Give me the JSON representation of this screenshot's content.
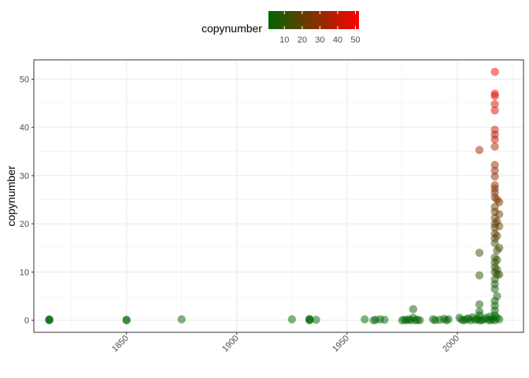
{
  "chart_data": {
    "type": "scatter",
    "title": "",
    "xlabel": "",
    "ylabel": "copynumber",
    "xlim": [
      1808,
      2030
    ],
    "ylim": [
      -2.5,
      54
    ],
    "x_ticks": [
      1850,
      1900,
      1950,
      2000
    ],
    "y_ticks": [
      0,
      10,
      20,
      30,
      40,
      50
    ],
    "x_tick_labels": [
      "1850",
      "1900",
      "1950",
      "2000"
    ],
    "y_tick_labels": [
      "0",
      "10",
      "20",
      "30",
      "40",
      "50"
    ],
    "grid": true,
    "legend": {
      "title": "copynumber",
      "position": "top",
      "type": "colorbar",
      "range": [
        1,
        52
      ],
      "ticks": [
        10,
        20,
        30,
        40,
        50
      ],
      "tick_labels": [
        "10",
        "20",
        "30",
        "40",
        "50"
      ],
      "low_color": "#006400",
      "high_color": "#ff0000"
    },
    "points": [
      [
        1815,
        0
      ],
      [
        1815,
        0.2
      ],
      [
        1815,
        0.1
      ],
      [
        1850,
        0
      ],
      [
        1850,
        0.1
      ],
      [
        1875,
        0.2
      ],
      [
        1925,
        0.2
      ],
      [
        1933,
        0
      ],
      [
        1933,
        0.1
      ],
      [
        1933,
        0.3
      ],
      [
        1936,
        0.1
      ],
      [
        1958,
        0.2
      ],
      [
        1962,
        0
      ],
      [
        1963,
        0.1
      ],
      [
        1965,
        0.2
      ],
      [
        1967,
        0.1
      ],
      [
        1975,
        0
      ],
      [
        1976,
        0.1
      ],
      [
        1977,
        0
      ],
      [
        1978,
        0.2
      ],
      [
        1979,
        0
      ],
      [
        1980,
        2.3
      ],
      [
        1980,
        0.5
      ],
      [
        1981,
        0
      ],
      [
        1982,
        0.1
      ],
      [
        1983,
        0
      ],
      [
        1989,
        0.2
      ],
      [
        1990,
        0
      ],
      [
        1992,
        0.1
      ],
      [
        1994,
        0.3
      ],
      [
        1995,
        0
      ],
      [
        1996,
        0.2
      ],
      [
        2001,
        0.5
      ],
      [
        2002,
        0.1
      ],
      [
        2003,
        0
      ],
      [
        2004,
        0.2
      ],
      [
        2005,
        0.4
      ],
      [
        2006,
        0
      ],
      [
        2007,
        0.6
      ],
      [
        2008,
        0.1
      ],
      [
        2009,
        0.3
      ],
      [
        2010,
        0
      ],
      [
        2010,
        35.3
      ],
      [
        2010,
        14
      ],
      [
        2010,
        9.3
      ],
      [
        2010,
        3.3
      ],
      [
        2010,
        1.8
      ],
      [
        2010,
        1
      ],
      [
        2011,
        0
      ],
      [
        2012,
        0.2
      ],
      [
        2013,
        0.5
      ],
      [
        2014,
        0.1
      ],
      [
        2015,
        0.8
      ],
      [
        2015,
        0
      ],
      [
        2016,
        0.3
      ],
      [
        2017,
        51.5
      ],
      [
        2017,
        47
      ],
      [
        2017,
        46.5
      ],
      [
        2017,
        44.8
      ],
      [
        2017,
        43.5
      ],
      [
        2017,
        39.5
      ],
      [
        2017,
        38.5
      ],
      [
        2017,
        37.5
      ],
      [
        2017,
        36
      ],
      [
        2017,
        32.2
      ],
      [
        2017,
        31
      ],
      [
        2017,
        29.8
      ],
      [
        2017,
        28
      ],
      [
        2017,
        27.3
      ],
      [
        2017,
        26.5
      ],
      [
        2017,
        25.5
      ],
      [
        2017,
        23.5
      ],
      [
        2017,
        22.5
      ],
      [
        2017,
        21.2
      ],
      [
        2017,
        20
      ],
      [
        2017,
        19.2
      ],
      [
        2017,
        18
      ],
      [
        2017,
        17
      ],
      [
        2017,
        16
      ],
      [
        2017,
        13
      ],
      [
        2017,
        12
      ],
      [
        2017,
        11
      ],
      [
        2017,
        10
      ],
      [
        2017,
        8.5
      ],
      [
        2017,
        7.5
      ],
      [
        2017,
        6.5
      ],
      [
        2017,
        4
      ],
      [
        2017,
        3
      ],
      [
        2017,
        2
      ],
      [
        2017,
        1
      ],
      [
        2017,
        0
      ],
      [
        2018,
        25
      ],
      [
        2018,
        20.5
      ],
      [
        2018,
        17.5
      ],
      [
        2018,
        14.5
      ],
      [
        2018,
        12.5
      ],
      [
        2018,
        10.5
      ],
      [
        2018,
        9.5
      ],
      [
        2018,
        5
      ],
      [
        2018,
        0.5
      ],
      [
        2019,
        24.5
      ],
      [
        2019,
        22
      ],
      [
        2019,
        19.5
      ],
      [
        2019,
        15
      ],
      [
        2019,
        9.5
      ],
      [
        2019,
        0.2
      ]
    ]
  }
}
